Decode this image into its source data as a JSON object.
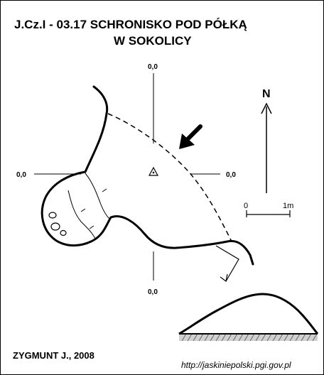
{
  "title": {
    "line1": "J.Cz.I - 03.17  SCHRONISKO POD PÓŁKĄ",
    "line2": "W SOKOLICY"
  },
  "datum_labels": {
    "top": "0,0",
    "left": "0,0",
    "right": "0,0",
    "bottom": "0,0"
  },
  "north_label": "N",
  "scale_bar": {
    "start": "0",
    "end": "1m"
  },
  "author": "ZYGMUNT J., 2008",
  "url": "http://jaskiniepolski.pgi.gov.pl"
}
